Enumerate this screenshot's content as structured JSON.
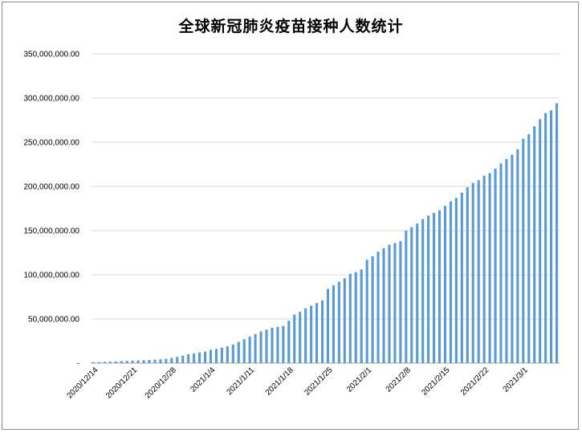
{
  "chart_data": {
    "type": "bar",
    "title": "全球新冠肺炎疫苗接种人数统计",
    "xlabel": "",
    "ylabel": "",
    "ylim": [
      0,
      350000000
    ],
    "y_ticks": [
      0,
      50000000,
      100000000,
      150000000,
      200000000,
      250000000,
      300000000,
      350000000
    ],
    "y_tick_labels": [
      "-",
      "50,000,000.00",
      "100,000,000.00",
      "150,000,000.00",
      "200,000,000.00",
      "250,000,000.00",
      "300,000,000.00",
      "350,000,000.00"
    ],
    "grid": true,
    "bar_color": "#5b9bd5",
    "x_tick_labels": [
      "2020/12/14",
      "2020/12/21",
      "2020/12/28",
      "2021/1/4",
      "2021/1/11",
      "2021/1/18",
      "2021/1/25",
      "2021/2/1",
      "2021/2/8",
      "2021/2/15",
      "2021/2/22",
      "2021/3/1"
    ],
    "categories": [
      "2020/12/14",
      "2020/12/15",
      "2020/12/16",
      "2020/12/17",
      "2020/12/18",
      "2020/12/19",
      "2020/12/20",
      "2020/12/21",
      "2020/12/22",
      "2020/12/23",
      "2020/12/24",
      "2020/12/25",
      "2020/12/26",
      "2020/12/27",
      "2020/12/28",
      "2020/12/29",
      "2020/12/30",
      "2020/12/31",
      "2021/1/1",
      "2021/1/2",
      "2021/1/3",
      "2021/1/4",
      "2021/1/5",
      "2021/1/6",
      "2021/1/7",
      "2021/1/8",
      "2021/1/9",
      "2021/1/10",
      "2021/1/11",
      "2021/1/12",
      "2021/1/13",
      "2021/1/14",
      "2021/1/15",
      "2021/1/16",
      "2021/1/17",
      "2021/1/18",
      "2021/1/19",
      "2021/1/20",
      "2021/1/21",
      "2021/1/22",
      "2021/1/23",
      "2021/1/24",
      "2021/1/25",
      "2021/1/26",
      "2021/1/27",
      "2021/1/28",
      "2021/1/29",
      "2021/1/30",
      "2021/1/31",
      "2021/2/1",
      "2021/2/2",
      "2021/2/3",
      "2021/2/4",
      "2021/2/5",
      "2021/2/6",
      "2021/2/7",
      "2021/2/8",
      "2021/2/9",
      "2021/2/10",
      "2021/2/11",
      "2021/2/12",
      "2021/2/13",
      "2021/2/14",
      "2021/2/15",
      "2021/2/16",
      "2021/2/17",
      "2021/2/18",
      "2021/2/19",
      "2021/2/20",
      "2021/2/21",
      "2021/2/22",
      "2021/2/23",
      "2021/2/24",
      "2021/2/25",
      "2021/2/26",
      "2021/2/27",
      "2021/2/28",
      "2021/3/1",
      "2021/3/2",
      "2021/3/3",
      "2021/3/4",
      "2021/3/5",
      "2021/3/6",
      "2021/3/7"
    ],
    "values": [
      1000000,
      1200000,
      1500000,
      1700000,
      2000000,
      2200000,
      2500000,
      2800000,
      3000000,
      3300000,
      3600000,
      4000000,
      4300000,
      4800000,
      6000000,
      7000000,
      8500000,
      10000000,
      11000000,
      12000000,
      13000000,
      15000000,
      16000000,
      17500000,
      19000000,
      21000000,
      24000000,
      27000000,
      30000000,
      33000000,
      36000000,
      38000000,
      40000000,
      41000000,
      42000000,
      48000000,
      55000000,
      58000000,
      62000000,
      65000000,
      68000000,
      71000000,
      84000000,
      88000000,
      92000000,
      96000000,
      101000000,
      103000000,
      106000000,
      117000000,
      121000000,
      126000000,
      130000000,
      134000000,
      136000000,
      138000000,
      150000000,
      154000000,
      158000000,
      163000000,
      167000000,
      170000000,
      173000000,
      178000000,
      183000000,
      187000000,
      193000000,
      199000000,
      204000000,
      207000000,
      212000000,
      215000000,
      220000000,
      226000000,
      231000000,
      236000000,
      242000000,
      254000000,
      259000000,
      268000000,
      276000000,
      283000000,
      286000000,
      294000000
    ]
  }
}
